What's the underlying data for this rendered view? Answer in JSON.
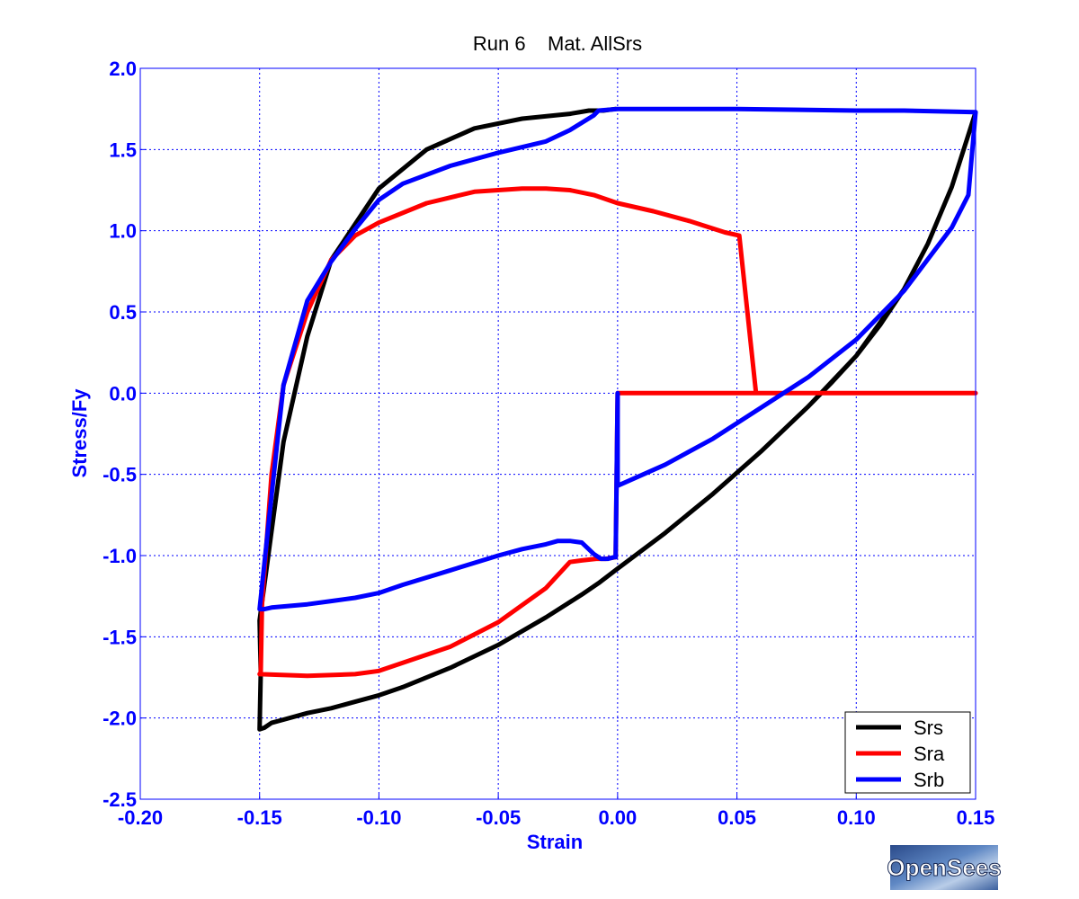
{
  "chart_data": {
    "type": "line",
    "title": "Run 6    Mat. AllSrs",
    "xlabel": "Strain",
    "ylabel": "Stress/Fy",
    "xlim": [
      -0.2,
      0.15
    ],
    "ylim": [
      -2.5,
      2.0
    ],
    "xticks": [
      -0.2,
      -0.15,
      -0.1,
      -0.05,
      0.0,
      0.05,
      0.1,
      0.15
    ],
    "xtick_labels": [
      "-0.20",
      "-0.15",
      "-0.10",
      "-0.05",
      "0.00",
      "0.05",
      "0.10",
      "0.15"
    ],
    "yticks": [
      -2.5,
      -2.0,
      -1.5,
      -1.0,
      -0.5,
      0.0,
      0.5,
      1.0,
      1.5,
      2.0
    ],
    "ytick_labels": [
      "-2.5",
      "-2.0",
      "-1.5",
      "-1.0",
      "-0.5",
      "0.0",
      "0.5",
      "1.0",
      "1.5",
      "2.0"
    ],
    "grid": true,
    "legend_position": "bottom-right",
    "axis_color": "#0000ff",
    "series": [
      {
        "name": "Srs",
        "color": "#000000",
        "x": [
          0.0,
          0.02,
          0.04,
          0.06,
          0.08,
          0.09,
          0.1,
          0.11,
          0.12,
          0.13,
          0.14,
          0.15,
          0.15,
          0.14,
          0.13,
          0.12,
          0.1,
          0.08,
          0.06,
          0.04,
          0.02,
          0.0,
          -0.008,
          -0.015,
          -0.03,
          -0.05,
          -0.07,
          -0.09,
          -0.1,
          -0.11,
          -0.12,
          -0.13,
          -0.14,
          -0.145,
          -0.148,
          -0.15,
          -0.1495,
          -0.15,
          -0.14,
          -0.13,
          -0.12,
          -0.1,
          -0.08,
          -0.06,
          -0.04,
          -0.02,
          -0.012,
          -0.006,
          -0.0008
        ],
        "y": [
          -1.08,
          -0.86,
          -0.62,
          -0.36,
          -0.08,
          0.07,
          0.23,
          0.42,
          0.64,
          0.92,
          1.27,
          1.73,
          1.73,
          1.27,
          0.92,
          0.64,
          0.23,
          -0.08,
          -0.36,
          -0.62,
          -0.86,
          -1.08,
          -1.17,
          -1.24,
          -1.38,
          -1.55,
          -1.69,
          -1.81,
          -1.86,
          -1.9,
          -1.94,
          -1.97,
          -2.01,
          -2.03,
          -2.06,
          -2.07,
          -1.72,
          -1.4,
          -0.3,
          0.35,
          0.82,
          1.26,
          1.5,
          1.63,
          1.69,
          1.72,
          1.74,
          1.74,
          1.75
        ]
      },
      {
        "name": "Sra",
        "color": "#ff0000",
        "x": [
          0.15,
          0.1,
          0.06,
          0.0,
          0.0,
          -0.0008,
          -0.005,
          -0.009,
          -0.015,
          -0.02,
          -0.03,
          -0.05,
          -0.07,
          -0.09,
          -0.1,
          -0.11,
          -0.13,
          -0.15,
          -0.1495,
          -0.149,
          -0.145,
          -0.14,
          -0.13,
          -0.12,
          -0.11,
          -0.1,
          -0.08,
          -0.06,
          -0.04,
          -0.03,
          -0.02,
          -0.01,
          0.0,
          0.015,
          0.03,
          0.045,
          0.051,
          0.058,
          0.058,
          0.075,
          0.1,
          0.15
        ],
        "y": [
          0.0,
          0.0,
          0.0,
          0.0,
          0.0,
          -1.01,
          -1.02,
          -1.02,
          -1.03,
          -1.04,
          -1.2,
          -1.41,
          -1.56,
          -1.66,
          -1.71,
          -1.73,
          -1.74,
          -1.73,
          -1.72,
          -1.3,
          -0.5,
          0.05,
          0.5,
          0.82,
          0.97,
          1.05,
          1.17,
          1.24,
          1.26,
          1.26,
          1.25,
          1.22,
          1.17,
          1.12,
          1.06,
          0.99,
          0.97,
          0.0,
          0.0,
          0.0,
          0.0,
          0.0
        ]
      },
      {
        "name": "Srb",
        "color": "#0000ff",
        "x": [
          0.0,
          0.02,
          0.04,
          0.06,
          0.08,
          0.1,
          0.12,
          0.14,
          0.147,
          0.15,
          0.15,
          0.12,
          0.1,
          0.05,
          0.0,
          -0.008,
          -0.01,
          -0.02,
          -0.03,
          -0.05,
          -0.07,
          -0.09,
          -0.1,
          -0.11,
          -0.12,
          -0.13,
          -0.14,
          -0.145,
          -0.15,
          -0.148,
          -0.145,
          -0.13,
          -0.12,
          -0.11,
          -0.1,
          -0.09,
          -0.07,
          -0.05,
          -0.04,
          -0.03,
          -0.025,
          -0.02,
          -0.015,
          -0.01,
          -0.007,
          -0.004,
          -0.0015,
          -0.0008,
          0.0,
          0.0
        ],
        "y": [
          -0.57,
          -0.44,
          -0.28,
          -0.09,
          0.1,
          0.33,
          0.63,
          1.02,
          1.22,
          1.73,
          1.73,
          1.74,
          1.74,
          1.75,
          1.75,
          1.74,
          1.71,
          1.62,
          1.55,
          1.48,
          1.4,
          1.29,
          1.19,
          1.01,
          0.81,
          0.57,
          0.05,
          -0.63,
          -1.33,
          -1.33,
          -1.32,
          -1.3,
          -1.28,
          -1.26,
          -1.23,
          -1.18,
          -1.09,
          -1.0,
          -0.96,
          -0.93,
          -0.91,
          -0.91,
          -0.92,
          -0.99,
          -1.02,
          -1.02,
          -1.01,
          -1.01,
          0.0,
          -0.57
        ]
      }
    ]
  },
  "logo": {
    "text": "OpenSees"
  }
}
